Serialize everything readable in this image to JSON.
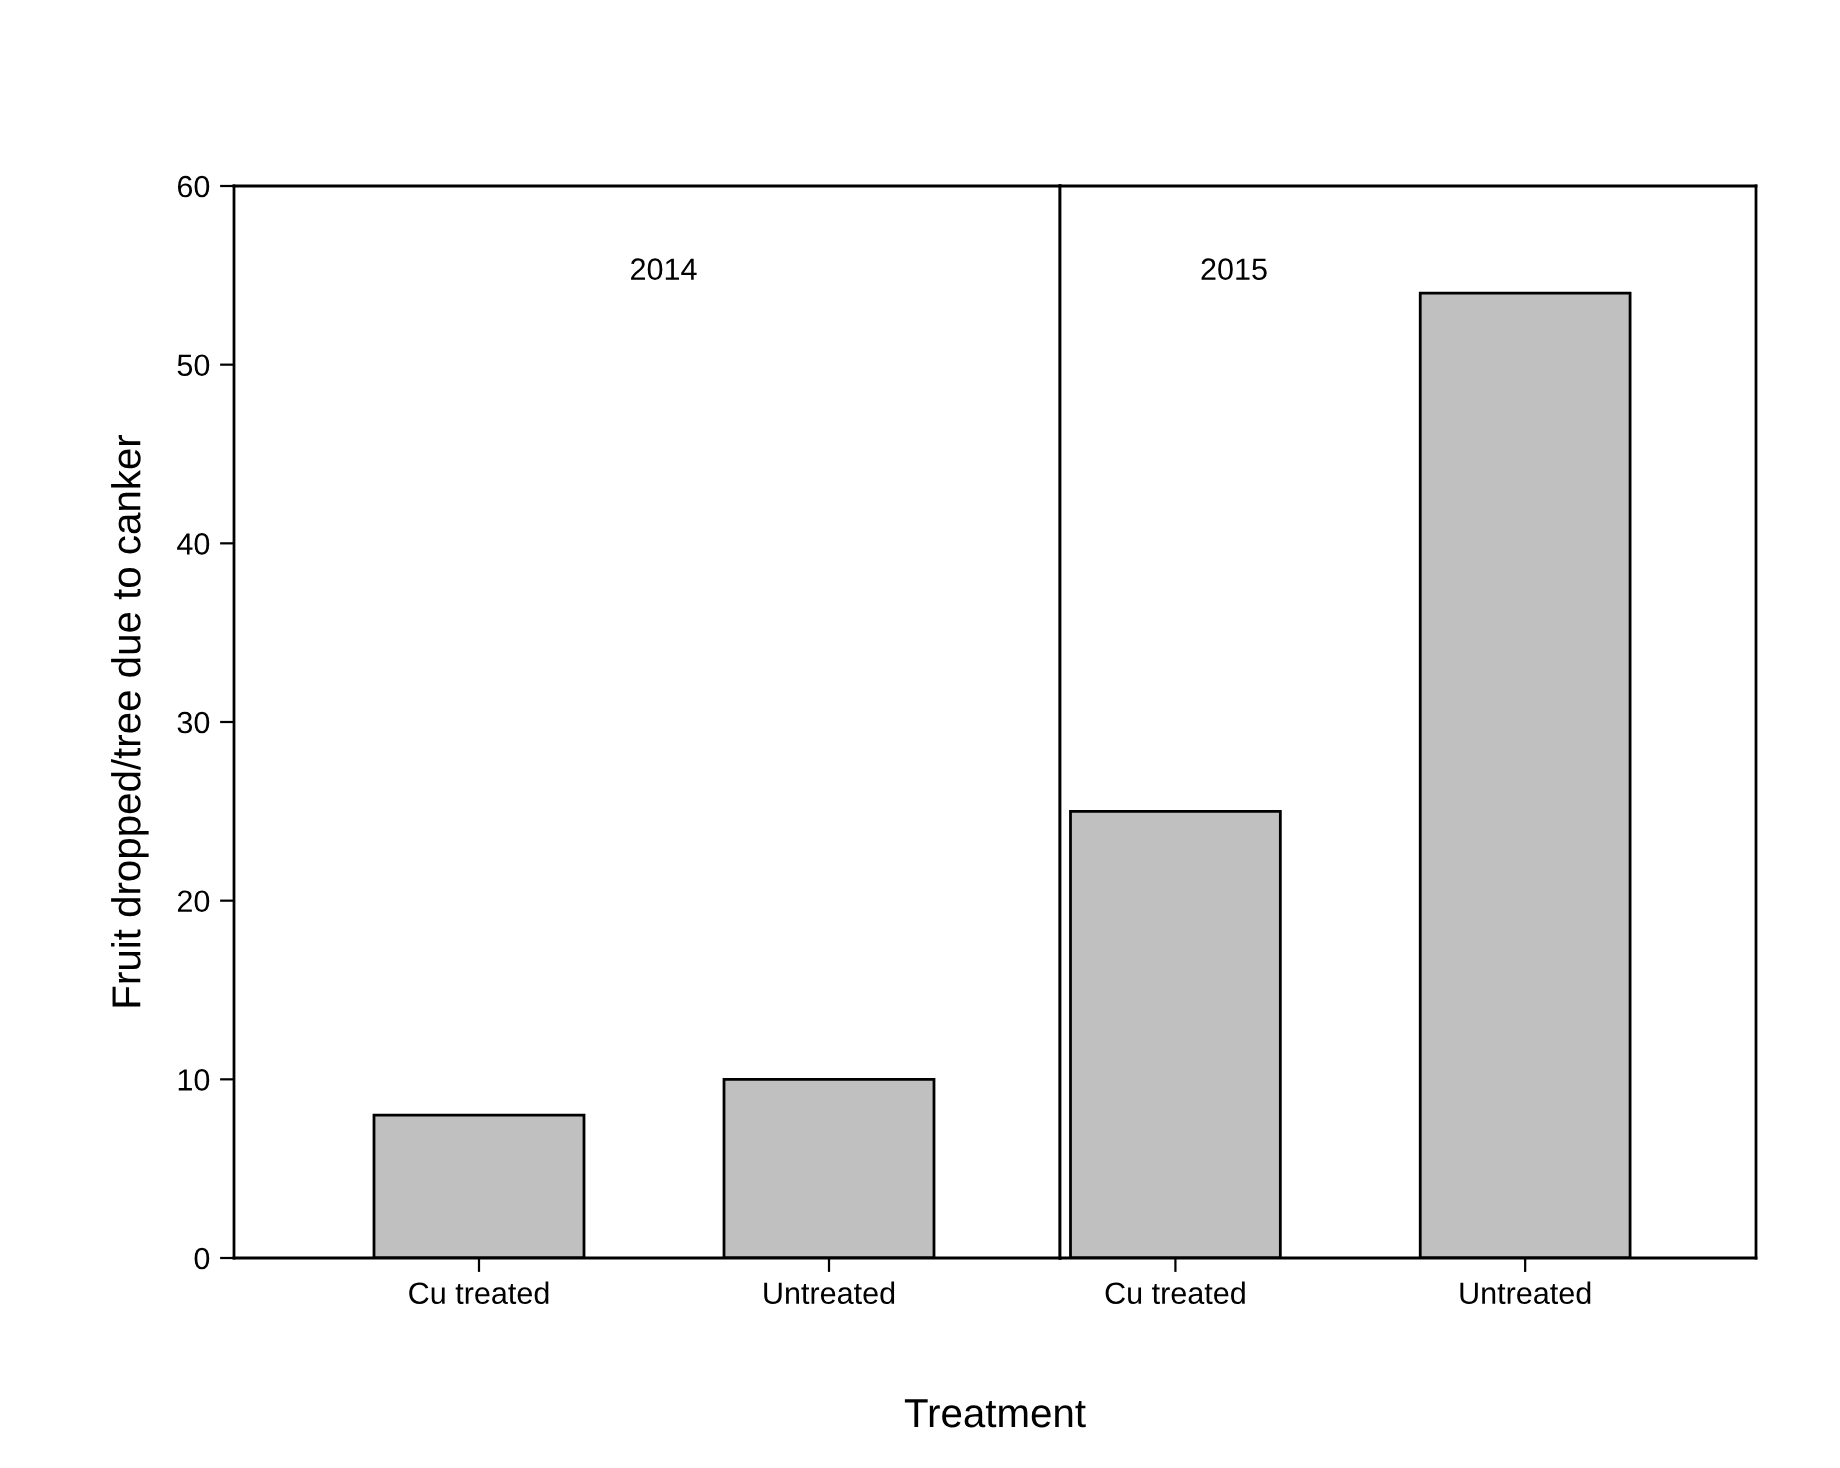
{
  "chart_data": [
    {
      "type": "bar",
      "categories": [
        "Cu treated",
        "Untreated"
      ],
      "values": [
        8,
        10
      ],
      "color": "#c0c0c0",
      "ylim": [
        0,
        60
      ],
      "yticks": [
        0,
        10,
        20,
        30,
        40,
        50,
        60
      ],
      "ylabel": "Fruit dropped/tree due to canker",
      "xlabel": "Treatment",
      "annotations": [
        "2014"
      ],
      "grid": false
    },
    {
      "type": "bar",
      "categories": [
        "Cu treated",
        "Untreated"
      ],
      "values": [
        25,
        54
      ],
      "color": "#c0c0c0",
      "ylim": [
        0,
        60
      ],
      "yticks": [
        0,
        10,
        20,
        30,
        40,
        50,
        60
      ],
      "tick_labels": "x",
      "annotations": [
        "2015"
      ],
      "grid": false
    }
  ]
}
